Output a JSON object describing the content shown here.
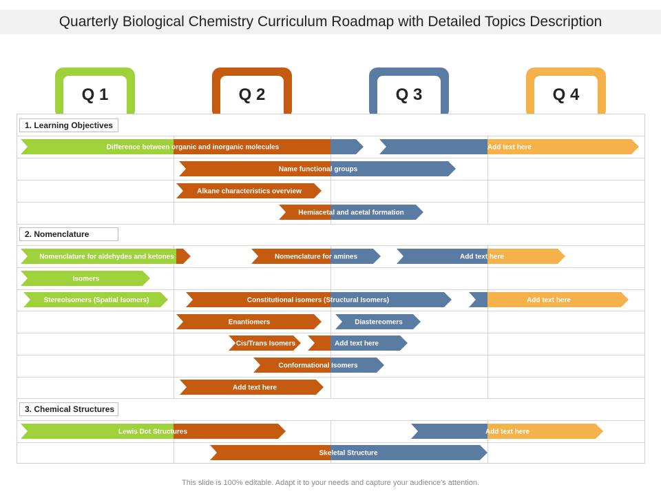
{
  "title": "Quarterly Biological Chemistry Curriculum Roadmap with Detailed Topics Description",
  "footer": "This slide is 100% editable. Adapt it to your needs and capture your audience's attention.",
  "colors": {
    "green": "#9fd13a",
    "orange": "#c55a11",
    "blue": "#5a7ca3",
    "yellow": "#f6b24a"
  },
  "quarters": [
    {
      "label": "Q 1",
      "color": "#9fd13a"
    },
    {
      "label": "Q 2",
      "color": "#c55a11"
    },
    {
      "label": "Q 3",
      "color": "#5a7ca3"
    },
    {
      "label": "Q 4",
      "color": "#f6b24a"
    }
  ],
  "sections": [
    {
      "label": "1. Learning Objectives"
    },
    {
      "label": "2. Nomenclature"
    },
    {
      "label": "3. Chemical Structures"
    }
  ],
  "tasks": [
    {
      "label": "Difference between organic and inorganic molecules",
      "segments": [
        "green",
        "orange",
        "blue"
      ]
    },
    {
      "label": "Add text here",
      "segments": [
        "blue",
        "yellow"
      ]
    },
    {
      "label": "Name functional groups",
      "segments": [
        "orange",
        "blue"
      ]
    },
    {
      "label": "Alkane characteristics overview",
      "segments": [
        "orange"
      ]
    },
    {
      "label": "Hemiacetal and acetal formation",
      "segments": [
        "orange",
        "blue"
      ]
    },
    {
      "label": "Nomenclature for aldehydes and ketones",
      "segments": [
        "green",
        "orange"
      ]
    },
    {
      "label": "Nomenclature for amines",
      "segments": [
        "orange",
        "blue"
      ]
    },
    {
      "label": "Add text here",
      "segments": [
        "blue",
        "yellow"
      ]
    },
    {
      "label": "Isomers",
      "segments": [
        "green"
      ]
    },
    {
      "label": "Stereoisomers (Spatial Isomers)",
      "segments": [
        "green"
      ]
    },
    {
      "label": "Constitutional isomers (Structural Isomers)",
      "segments": [
        "orange",
        "blue"
      ]
    },
    {
      "label": "Add text here",
      "segments": [
        "blue",
        "yellow"
      ]
    },
    {
      "label": "Enantiomers",
      "segments": [
        "orange"
      ]
    },
    {
      "label": "Diastereomers",
      "segments": [
        "blue"
      ]
    },
    {
      "label": "Cis/Trans Isomers",
      "segments": [
        "orange"
      ]
    },
    {
      "label": "Add text here",
      "segments": [
        "orange",
        "blue"
      ]
    },
    {
      "label": "Conformational Isomers",
      "segments": [
        "orange",
        "blue"
      ]
    },
    {
      "label": "Add text here",
      "segments": [
        "orange"
      ]
    },
    {
      "label": "Lewis Dot Structures",
      "segments": [
        "green",
        "orange"
      ]
    },
    {
      "label": "Add text here",
      "segments": [
        "blue",
        "yellow"
      ]
    },
    {
      "label": "Skeletal Structure",
      "segments": [
        "orange",
        "blue"
      ]
    }
  ]
}
